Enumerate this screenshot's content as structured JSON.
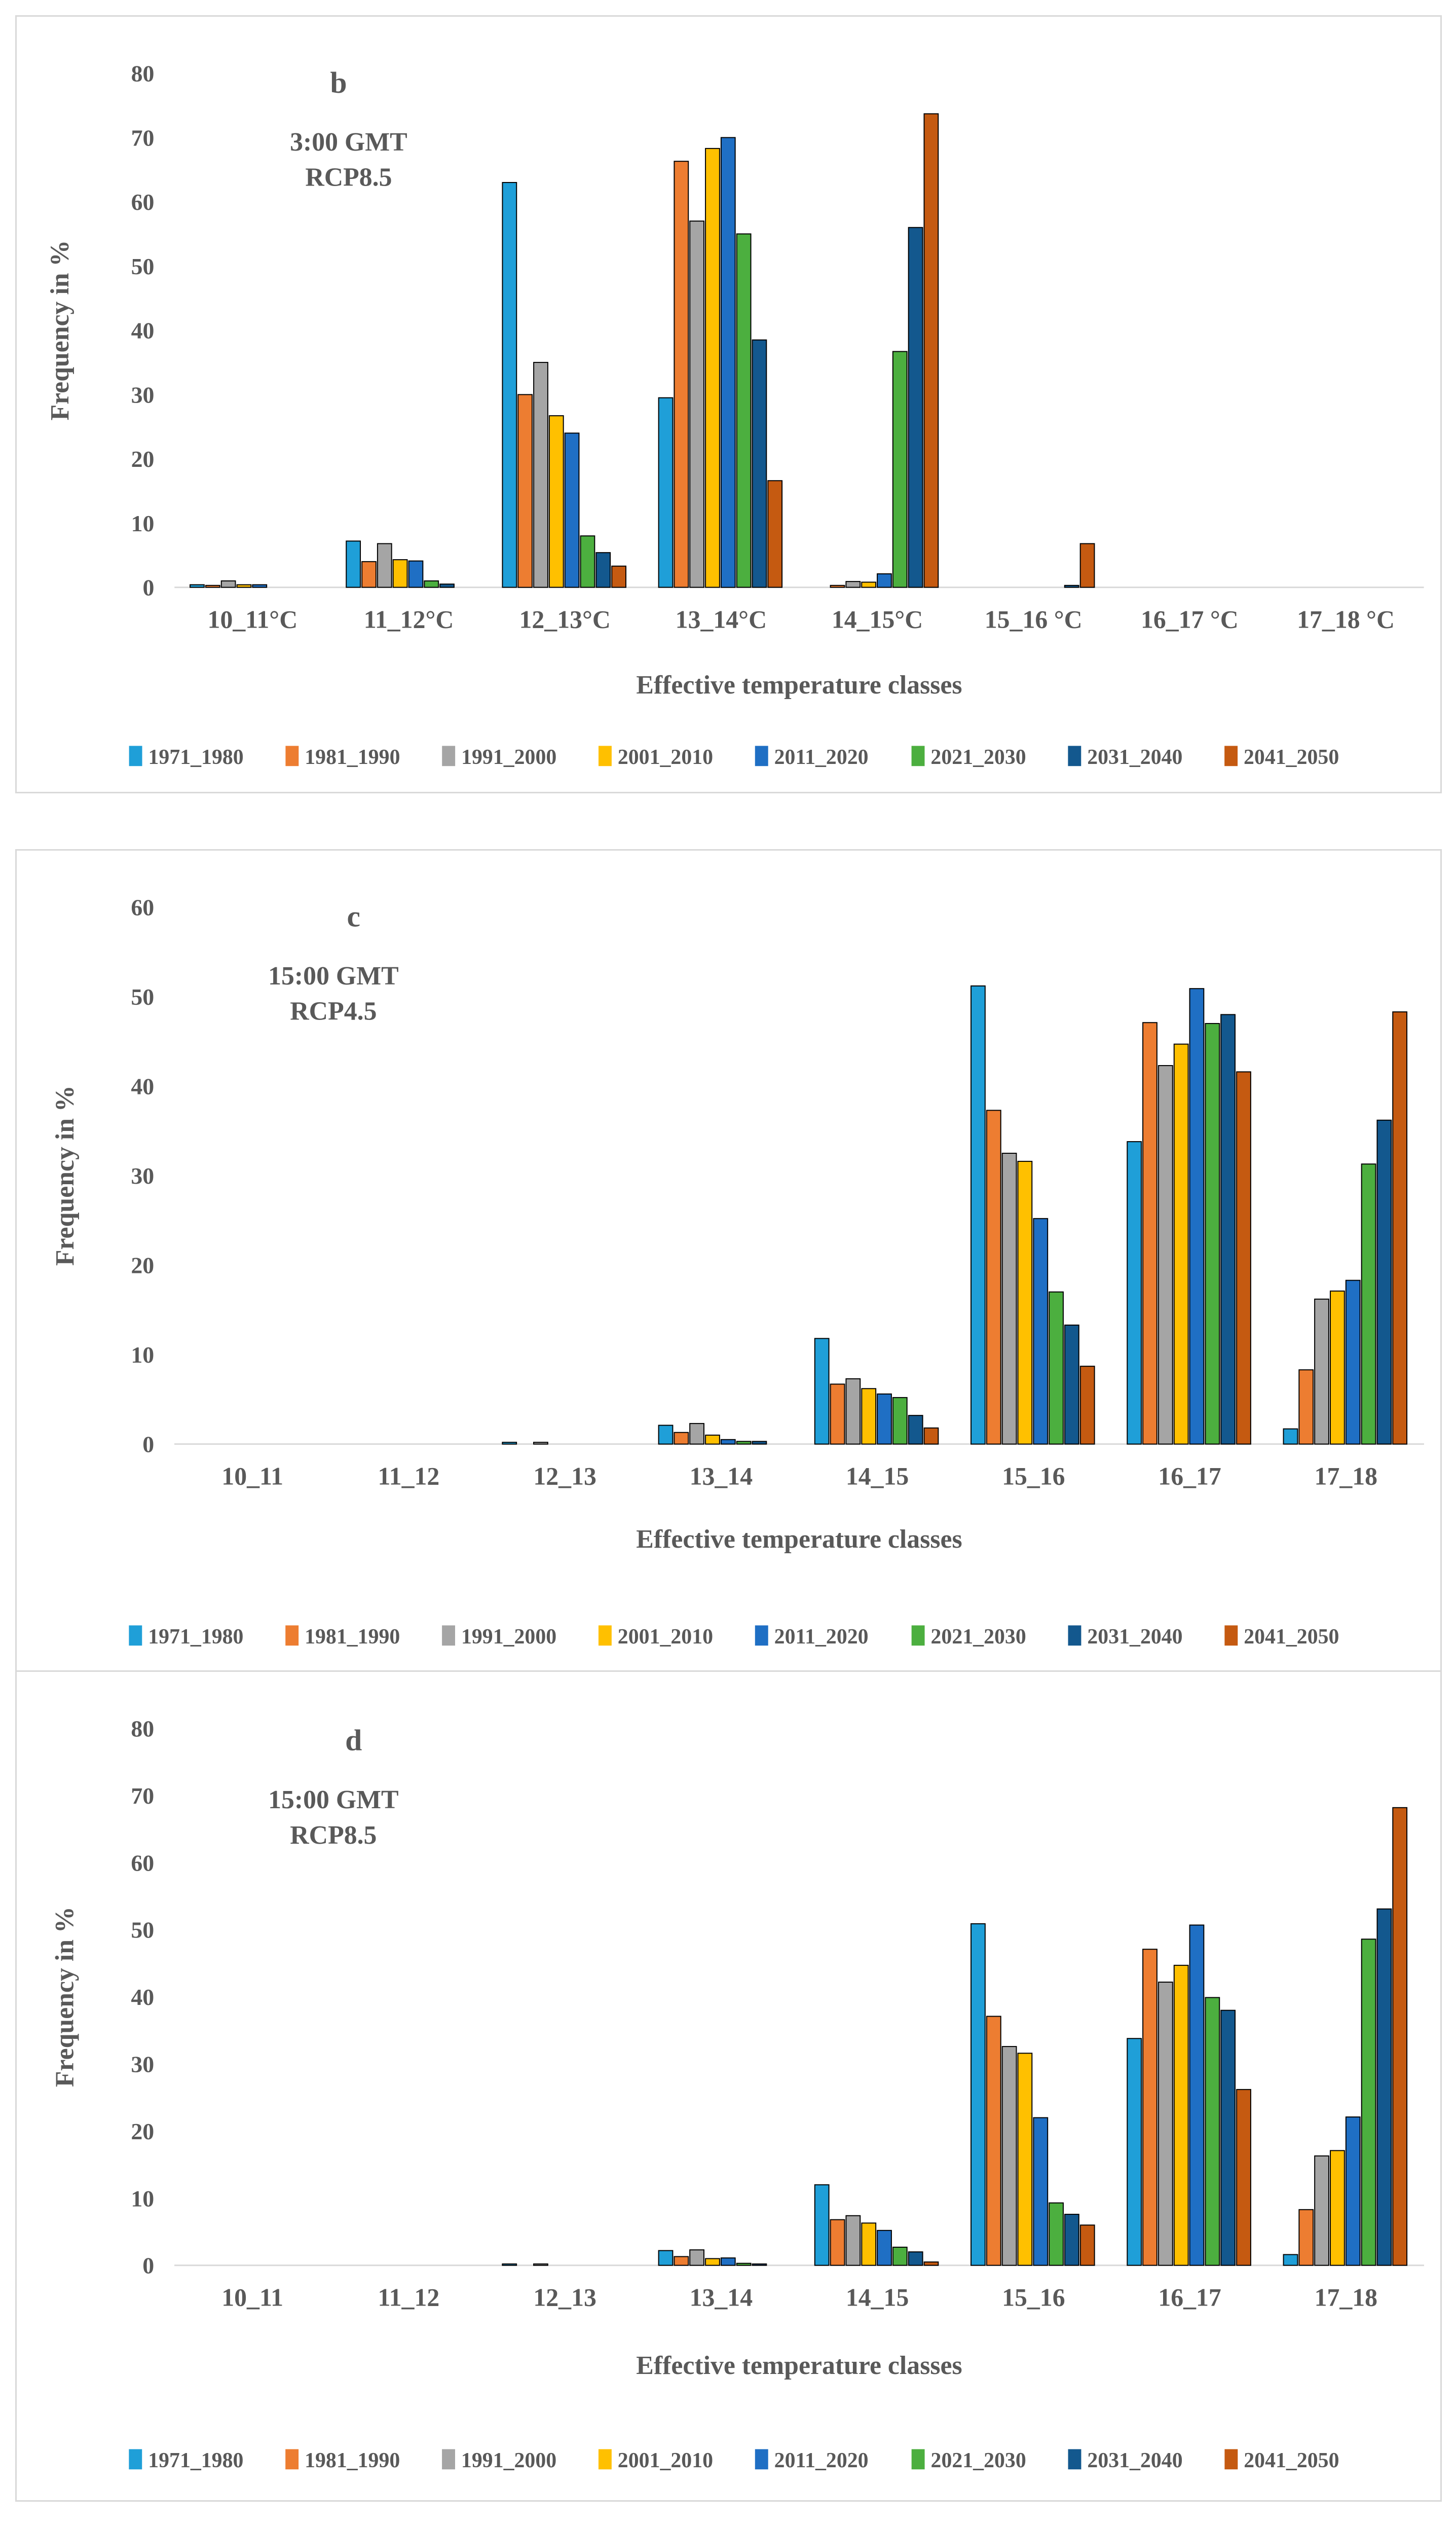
{
  "colors": [
    "#1F9FD8",
    "#ED7D31",
    "#A5A5A5",
    "#FFC000",
    "#1F6FC4",
    "#4CAF3F",
    "#13588E",
    "#C55A11"
  ],
  "chart_data": [
    {
      "type": "bar",
      "panel_label": "b",
      "annotation": [
        "3:00 GMT",
        "RCP8.5"
      ],
      "xlabel": "Effective temperature classes",
      "ylabel": "Frequency in %",
      "ylim": [
        0,
        80
      ],
      "yticks": [
        0,
        10,
        20,
        30,
        40,
        50,
        60,
        70,
        80
      ],
      "grid": false,
      "legend_position": "bottom",
      "categories": [
        "10_11°C",
        "11_12°C",
        "12_13°C",
        "13_14°C",
        "14_15°C",
        "15_16 °C",
        "16_17 °C",
        "17_18 °C"
      ],
      "series": [
        {
          "name": "1971_1980",
          "values": [
            0.4,
            7.2,
            63.0,
            29.5,
            0.0,
            0.0,
            0.0,
            0.0
          ]
        },
        {
          "name": "1981_1990",
          "values": [
            0.3,
            4.0,
            30.0,
            66.3,
            0.3,
            0.0,
            0.0,
            0.0
          ]
        },
        {
          "name": "1991_2000",
          "values": [
            1.0,
            6.8,
            35.0,
            57.0,
            0.9,
            0.0,
            0.0,
            0.0
          ]
        },
        {
          "name": "2001_2010",
          "values": [
            0.4,
            4.3,
            26.7,
            68.3,
            0.8,
            0.0,
            0.0,
            0.0
          ]
        },
        {
          "name": "2011_2020",
          "values": [
            0.4,
            4.1,
            24.0,
            70.0,
            2.1,
            0.0,
            0.0,
            0.0
          ]
        },
        {
          "name": "2021_2030",
          "values": [
            0.0,
            1.0,
            8.0,
            55.0,
            36.7,
            0.0,
            0.0,
            0.0
          ]
        },
        {
          "name": "2031_2040",
          "values": [
            0.0,
            0.5,
            5.4,
            38.5,
            56.0,
            0.3,
            0.0,
            0.0
          ]
        },
        {
          "name": "2041_2050",
          "values": [
            0.0,
            0.0,
            3.3,
            16.6,
            73.7,
            6.8,
            0.0,
            0.0
          ]
        }
      ]
    },
    {
      "type": "bar",
      "panel_label": "c",
      "annotation": [
        "15:00 GMT",
        "RCP4.5"
      ],
      "xlabel": "Effective temperature classes",
      "ylabel": "Frequency in %",
      "ylim": [
        0,
        60
      ],
      "yticks": [
        0,
        10,
        20,
        30,
        40,
        50,
        60
      ],
      "grid": false,
      "legend_position": "bottom",
      "categories": [
        "10_11",
        "11_12",
        "12_13",
        "13_14",
        "14_15",
        "15_16",
        "16_17",
        "17_18"
      ],
      "series": [
        {
          "name": "1971_1980",
          "values": [
            0.0,
            0.0,
            0.2,
            2.1,
            11.8,
            51.2,
            33.8,
            1.7
          ]
        },
        {
          "name": "1981_1990",
          "values": [
            0.0,
            0.0,
            0.0,
            1.3,
            6.7,
            37.3,
            47.1,
            8.3
          ]
        },
        {
          "name": "1991_2000",
          "values": [
            0.0,
            0.0,
            0.2,
            2.3,
            7.3,
            32.5,
            42.3,
            16.2
          ]
        },
        {
          "name": "2001_2010",
          "values": [
            0.0,
            0.0,
            0.0,
            1.0,
            6.2,
            31.6,
            44.7,
            17.1
          ]
        },
        {
          "name": "2011_2020",
          "values": [
            0.0,
            0.0,
            0.0,
            0.5,
            5.6,
            25.2,
            50.9,
            18.3
          ]
        },
        {
          "name": "2021_2030",
          "values": [
            0.0,
            0.0,
            0.0,
            0.3,
            5.2,
            17.0,
            47.0,
            31.3
          ]
        },
        {
          "name": "2031_2040",
          "values": [
            0.0,
            0.0,
            0.0,
            0.3,
            3.2,
            13.3,
            48.0,
            36.2
          ]
        },
        {
          "name": "2041_2050",
          "values": [
            0.0,
            0.0,
            0.0,
            0.0,
            1.8,
            8.7,
            41.6,
            48.3
          ]
        }
      ]
    },
    {
      "type": "bar",
      "panel_label": "d",
      "annotation": [
        "15:00 GMT",
        "RCP8.5"
      ],
      "xlabel": "Effective temperature classes",
      "ylabel": "Frequency in %",
      "ylim": [
        0,
        80
      ],
      "yticks": [
        0,
        10,
        20,
        30,
        40,
        50,
        60,
        70,
        80
      ],
      "grid": false,
      "legend_position": "bottom",
      "categories": [
        "10_11",
        "11_12",
        "12_13",
        "13_14",
        "14_15",
        "15_16",
        "16_17",
        "17_18"
      ],
      "series": [
        {
          "name": "1971_1980",
          "values": [
            0.0,
            0.0,
            0.2,
            2.2,
            12.0,
            50.9,
            33.8,
            1.6
          ]
        },
        {
          "name": "1981_1990",
          "values": [
            0.0,
            0.0,
            0.0,
            1.3,
            6.8,
            37.1,
            47.1,
            8.3
          ]
        },
        {
          "name": "1991_2000",
          "values": [
            0.0,
            0.0,
            0.2,
            2.3,
            7.4,
            32.6,
            42.2,
            16.3
          ]
        },
        {
          "name": "2001_2010",
          "values": [
            0.0,
            0.0,
            0.0,
            1.0,
            6.3,
            31.6,
            44.7,
            17.1
          ]
        },
        {
          "name": "2011_2020",
          "values": [
            0.0,
            0.0,
            0.0,
            1.1,
            5.2,
            22.0,
            50.7,
            22.1
          ]
        },
        {
          "name": "2021_2030",
          "values": [
            0.0,
            0.0,
            0.0,
            0.3,
            2.7,
            9.3,
            39.9,
            48.6
          ]
        },
        {
          "name": "2031_2040",
          "values": [
            0.0,
            0.0,
            0.0,
            0.2,
            2.0,
            7.6,
            38.0,
            53.1
          ]
        },
        {
          "name": "2041_2050",
          "values": [
            0.0,
            0.0,
            0.0,
            0.0,
            0.5,
            6.0,
            26.2,
            68.2
          ]
        }
      ]
    }
  ]
}
